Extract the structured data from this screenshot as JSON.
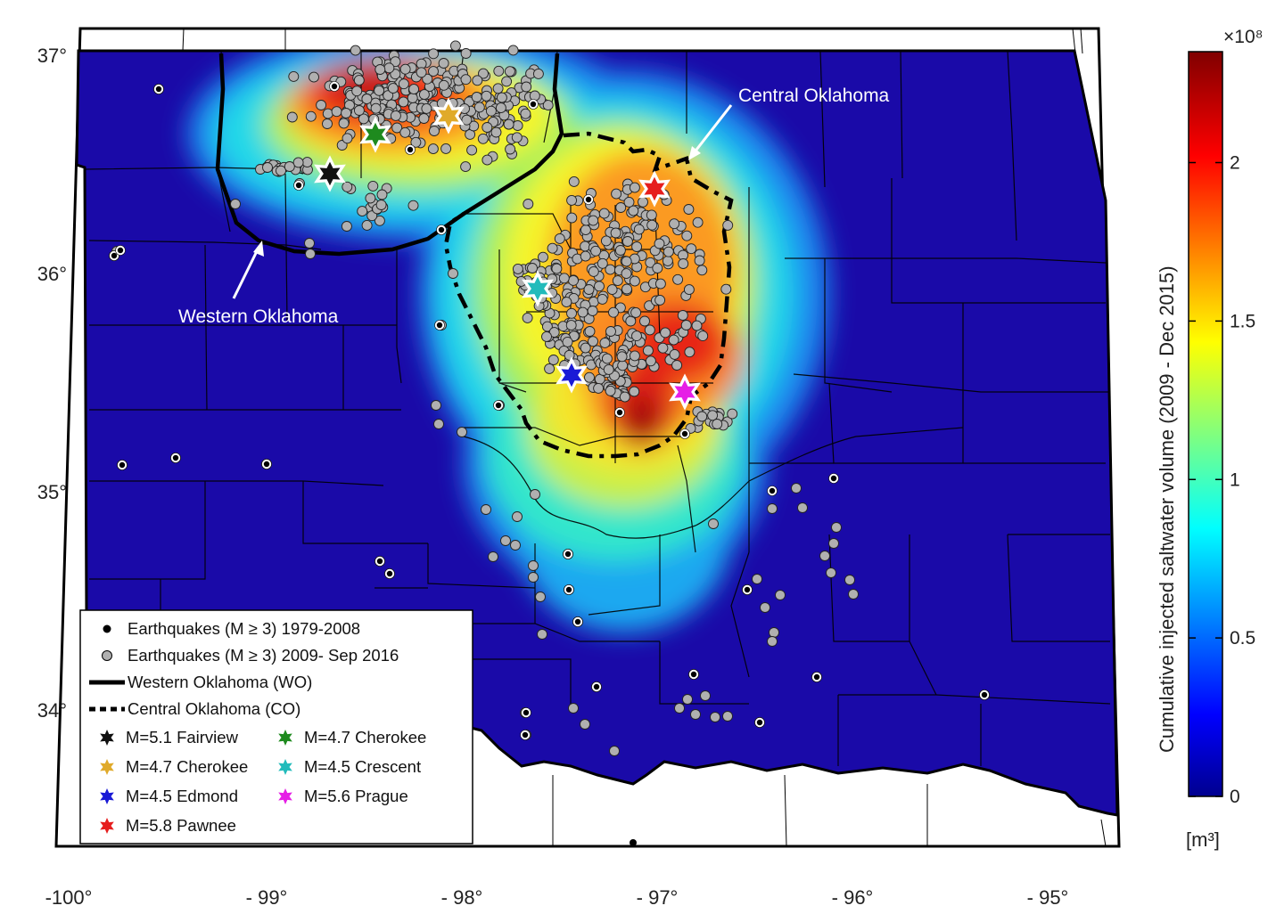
{
  "axes": {
    "x_ticks": [
      {
        "value": -100,
        "label": "-100°"
      },
      {
        "value": -99,
        "label": "- 99°"
      },
      {
        "value": -98,
        "label": "- 98°"
      },
      {
        "value": -97,
        "label": "- 97°"
      },
      {
        "value": -96,
        "label": "- 96°"
      },
      {
        "value": -95,
        "label": "- 95°"
      }
    ],
    "y_ticks": [
      {
        "value": 37,
        "label": "37°"
      },
      {
        "value": 36,
        "label": "36°"
      },
      {
        "value": 35,
        "label": "35°"
      },
      {
        "value": 34,
        "label": "34°"
      }
    ]
  },
  "annotations": {
    "western": "Western Oklahoma",
    "central": "Central Oklahoma"
  },
  "colorbar": {
    "title": "Cumulative injected saltwater volume (2009 - Dec 2015)",
    "unit": "[m³]",
    "exponent": "×10⁸",
    "ticks": [
      "0",
      "0.5",
      "1",
      "1.5",
      "2"
    ],
    "tick_values": [
      0,
      0.5,
      1,
      1.5,
      2
    ],
    "max": 2.35
  },
  "legend": {
    "items": [
      {
        "label": "Earthquakes (M ≥ 3) 1979-2008",
        "marker": "black-dot"
      },
      {
        "label": "Earthquakes (M ≥ 3) 2009- Sep 2016",
        "marker": "gray-dot"
      },
      {
        "label": "Western Oklahoma (WO)",
        "marker": "solid-line"
      },
      {
        "label": "Central Oklahoma (CO)",
        "marker": "dashed-line"
      }
    ],
    "stars": [
      {
        "label": "M=5.1 Fairview",
        "color": "#111111"
      },
      {
        "label": "M=4.7 Cherokee",
        "color": "#1e8a1e"
      },
      {
        "label": "M=4.7 Cherokee",
        "color": "#e0aa2a"
      },
      {
        "label": "M=4.5 Crescent",
        "color": "#22bbbb"
      },
      {
        "label": "M=4.5 Edmond",
        "color": "#1a1ad6"
      },
      {
        "label": "M=5.6 Prague",
        "color": "#e61ee6"
      },
      {
        "label": "M=5.8 Pawnee",
        "color": "#e61e1e"
      }
    ]
  },
  "events": {
    "fairview": {
      "lon": -98.7,
      "lat": 36.47,
      "color": "#111111"
    },
    "cherokee_green": {
      "lon": -98.44,
      "lat": 36.64,
      "color": "#1e8a1e"
    },
    "cherokee_orange": {
      "lon": -98.05,
      "lat": 36.73,
      "color": "#e0aa2a"
    },
    "crescent": {
      "lon": -97.6,
      "lat": 35.94,
      "color": "#22bbbb"
    },
    "edmond": {
      "lon": -97.41,
      "lat": 35.59,
      "color": "#1a1ad6"
    },
    "prague": {
      "lon": -96.77,
      "lat": 35.51,
      "color": "#e61ee6"
    },
    "pawnee": {
      "lon": -96.93,
      "lat": 36.39,
      "color": "#e61e1e"
    }
  },
  "colors": {
    "map_background": "#1a0aa8",
    "quake_gray": "#b0b0b0"
  }
}
